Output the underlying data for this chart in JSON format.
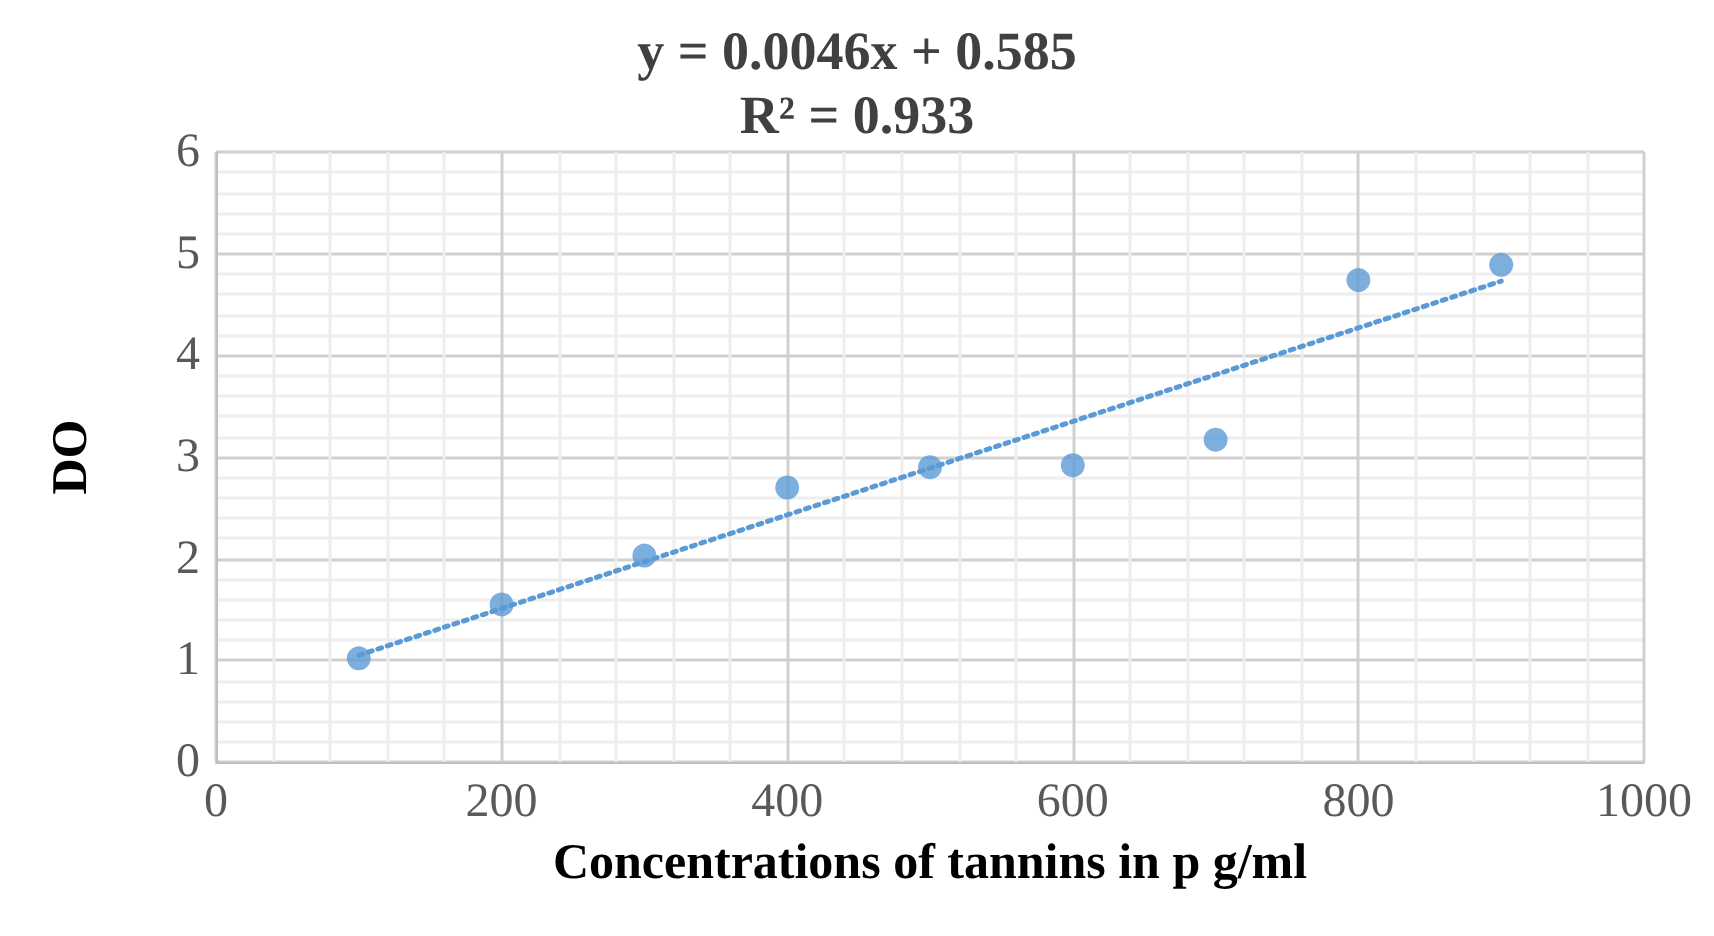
{
  "chart_data": {
    "type": "scatter",
    "annotations": [
      "y = 0.0046x + 0.585",
      "R² = 0.933"
    ],
    "xlabel": "Concentrations of tannins in p g/ml",
    "ylabel": "DO",
    "x": [
      100,
      200,
      300,
      400,
      500,
      600,
      700,
      800,
      900
    ],
    "series": [
      {
        "color": "#5b9bd5",
        "values": [
          1.02,
          1.55,
          2.03,
          2.7,
          2.9,
          2.92,
          3.17,
          4.74,
          4.89
        ],
        "marker": "circle"
      },
      {
        "type": "line",
        "color": "#5b9bd5",
        "x": [
          100,
          900
        ],
        "values": [
          1.05,
          4.73
        ],
        "line_style": "dotted",
        "marker": "none"
      }
    ],
    "xlim": [
      0,
      1000
    ],
    "xticks": [
      0,
      200,
      400,
      600,
      800,
      1000
    ],
    "ylim": [
      0,
      6
    ],
    "yticks": [
      0,
      1,
      2,
      3,
      4,
      5,
      6
    ],
    "grid": true
  }
}
